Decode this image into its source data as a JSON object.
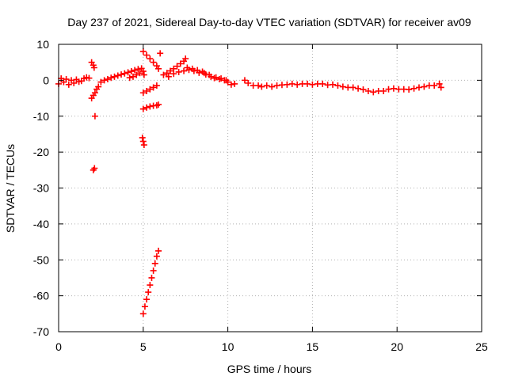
{
  "chart_data": {
    "type": "scatter",
    "title": "Day 237 of 2021, Sidereal Day-to-day VTEC variation (SDTVAR) for receiver av09",
    "xlabel": "GPS time / hours",
    "ylabel": "SDTVAR / TECUs",
    "xlim": [
      0,
      25
    ],
    "ylim": [
      -70,
      10
    ],
    "xticks": [
      "0",
      "5",
      "10",
      "15",
      "20",
      "25"
    ],
    "yticks": [
      "10",
      "0",
      "-10",
      "-20",
      "-30",
      "-40",
      "-50",
      "-60",
      "-70"
    ],
    "grid": true,
    "marker": "+",
    "series": [
      {
        "name": "av09",
        "color": "#ff0000",
        "points": [
          [
            0.0,
            -1.0
          ],
          [
            0.15,
            0.5
          ],
          [
            0.3,
            -0.5
          ],
          [
            0.45,
            0.3
          ],
          [
            0.6,
            -1.2
          ],
          [
            0.75,
            0.0
          ],
          [
            0.9,
            -0.8
          ],
          [
            1.05,
            0.2
          ],
          [
            1.2,
            -0.4
          ],
          [
            1.35,
            -0.2
          ],
          [
            1.5,
            0.5
          ],
          [
            1.65,
            0.8
          ],
          [
            1.8,
            0.6
          ],
          [
            1.95,
            5.0
          ],
          [
            2.05,
            4.2
          ],
          [
            2.1,
            3.5
          ],
          [
            1.95,
            -5.0
          ],
          [
            2.05,
            -4.2
          ],
          [
            2.15,
            -3.5
          ],
          [
            2.25,
            -2.5
          ],
          [
            2.35,
            -1.8
          ],
          [
            2.15,
            -10.0
          ],
          [
            2.05,
            -25.0
          ],
          [
            2.12,
            -24.5
          ],
          [
            2.5,
            -0.5
          ],
          [
            2.7,
            0.0
          ],
          [
            2.9,
            0.3
          ],
          [
            3.1,
            0.7
          ],
          [
            3.3,
            1.0
          ],
          [
            3.5,
            1.3
          ],
          [
            3.7,
            1.6
          ],
          [
            3.9,
            1.9
          ],
          [
            4.1,
            2.2
          ],
          [
            4.3,
            2.5
          ],
          [
            4.5,
            2.8
          ],
          [
            4.7,
            3.1
          ],
          [
            4.9,
            3.3
          ],
          [
            5.0,
            2.5
          ],
          [
            5.05,
            1.5
          ],
          [
            4.8,
            2.0
          ],
          [
            4.6,
            1.5
          ],
          [
            4.4,
            1.0
          ],
          [
            4.2,
            0.7
          ],
          [
            5.0,
            8.0
          ],
          [
            5.2,
            7.0
          ],
          [
            5.4,
            6.0
          ],
          [
            5.6,
            5.0
          ],
          [
            5.8,
            4.0
          ],
          [
            5.9,
            3.2
          ],
          [
            6.0,
            7.5
          ],
          [
            5.0,
            -3.5
          ],
          [
            5.2,
            -3.0
          ],
          [
            5.4,
            -2.5
          ],
          [
            5.6,
            -2.0
          ],
          [
            5.8,
            -1.5
          ],
          [
            5.0,
            -8.0
          ],
          [
            5.2,
            -7.6
          ],
          [
            5.4,
            -7.3
          ],
          [
            5.6,
            -7.1
          ],
          [
            5.8,
            -7.0
          ],
          [
            5.9,
            -6.8
          ],
          [
            4.95,
            -16.0
          ],
          [
            5.0,
            -17.0
          ],
          [
            5.05,
            -18.0
          ],
          [
            5.0,
            -65.0
          ],
          [
            5.1,
            -63.0
          ],
          [
            5.2,
            -61.0
          ],
          [
            5.3,
            -59.0
          ],
          [
            5.4,
            -57.0
          ],
          [
            5.5,
            -55.0
          ],
          [
            5.6,
            -53.0
          ],
          [
            5.7,
            -51.0
          ],
          [
            5.8,
            -49.0
          ],
          [
            5.9,
            -47.5
          ],
          [
            6.2,
            1.5
          ],
          [
            6.4,
            2.0
          ],
          [
            6.6,
            2.6
          ],
          [
            6.8,
            3.2
          ],
          [
            7.0,
            3.9
          ],
          [
            7.2,
            4.6
          ],
          [
            7.4,
            5.3
          ],
          [
            7.5,
            6.0
          ],
          [
            6.5,
            1.0
          ],
          [
            6.8,
            1.8
          ],
          [
            7.1,
            2.3
          ],
          [
            7.4,
            2.6
          ],
          [
            7.7,
            2.9
          ],
          [
            8.0,
            2.6
          ],
          [
            8.3,
            2.1
          ],
          [
            8.5,
            2.4
          ],
          [
            8.7,
            1.6
          ],
          [
            9.0,
            1.0
          ],
          [
            9.2,
            0.6
          ],
          [
            9.5,
            0.3
          ],
          [
            9.8,
            0.0
          ],
          [
            10.0,
            -0.5
          ],
          [
            10.2,
            -1.2
          ],
          [
            10.4,
            -1.0
          ],
          [
            7.6,
            3.5
          ],
          [
            7.9,
            3.2
          ],
          [
            8.2,
            2.8
          ],
          [
            8.6,
            2.0
          ],
          [
            8.9,
            1.5
          ],
          [
            9.3,
            0.8
          ],
          [
            9.6,
            0.5
          ],
          [
            9.9,
            0.0
          ],
          [
            11.0,
            0.0
          ],
          [
            11.2,
            -0.8
          ],
          [
            11.5,
            -1.5
          ],
          [
            11.8,
            -1.5
          ],
          [
            12.0,
            -1.8
          ],
          [
            12.3,
            -1.5
          ],
          [
            12.6,
            -1.8
          ],
          [
            12.9,
            -1.5
          ],
          [
            13.2,
            -1.3
          ],
          [
            13.5,
            -1.2
          ],
          [
            13.8,
            -1.0
          ],
          [
            14.1,
            -1.2
          ],
          [
            14.4,
            -1.0
          ],
          [
            14.7,
            -1.0
          ],
          [
            15.0,
            -1.2
          ],
          [
            15.3,
            -1.0
          ],
          [
            15.6,
            -1.0
          ],
          [
            15.9,
            -1.3
          ],
          [
            16.2,
            -1.2
          ],
          [
            16.5,
            -1.5
          ],
          [
            16.8,
            -1.8
          ],
          [
            17.1,
            -2.0
          ],
          [
            17.4,
            -2.0
          ],
          [
            17.7,
            -2.3
          ],
          [
            18.0,
            -2.6
          ],
          [
            18.3,
            -3.0
          ],
          [
            18.6,
            -3.3
          ],
          [
            18.9,
            -3.0
          ],
          [
            19.2,
            -3.0
          ],
          [
            19.5,
            -2.5
          ],
          [
            19.8,
            -2.3
          ],
          [
            20.1,
            -2.5
          ],
          [
            20.4,
            -2.5
          ],
          [
            20.7,
            -2.6
          ],
          [
            21.0,
            -2.3
          ],
          [
            21.3,
            -2.0
          ],
          [
            21.6,
            -1.8
          ],
          [
            21.9,
            -1.5
          ],
          [
            22.2,
            -1.5
          ],
          [
            22.5,
            -1.0
          ],
          [
            22.6,
            -2.0
          ]
        ]
      }
    ]
  }
}
